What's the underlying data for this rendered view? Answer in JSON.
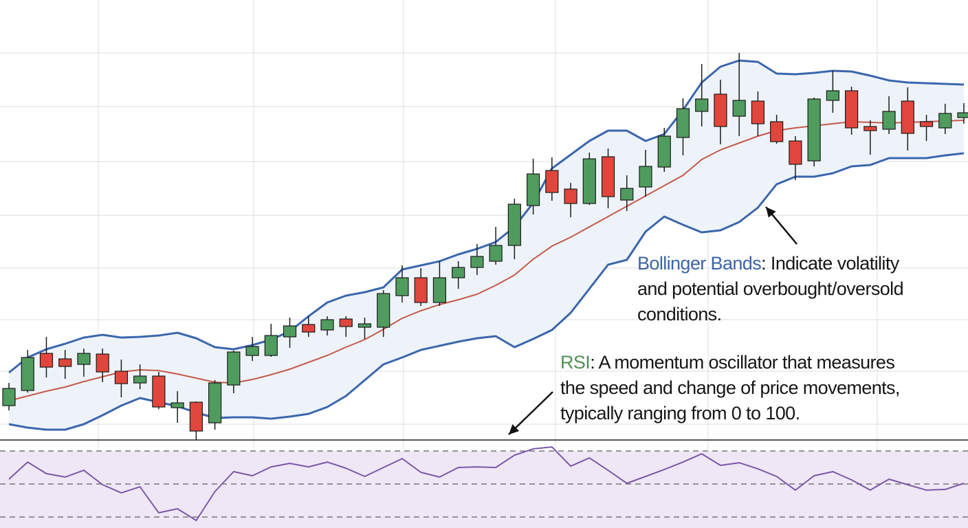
{
  "chart_data": [
    {
      "type": "candlestick",
      "title": "",
      "xlabel": "",
      "ylabel": "",
      "ylim": [
        12,
        140
      ],
      "grid": true,
      "colors": {
        "up": "#4f9c5e",
        "down": "#e0463c",
        "band": "#3b66ad",
        "middle": "#c65a48",
        "band_fill": "#edf3f9",
        "grid": "#e2e2e2"
      },
      "candles": [
        [
          22,
          28.6,
          20.6,
          27
        ],
        [
          26.4,
          38.2,
          25.8,
          36
        ],
        [
          37.2,
          42,
          30.2,
          33.2
        ],
        [
          35.6,
          38.2,
          29.8,
          33.4
        ],
        [
          34,
          38.6,
          30.4,
          37.2
        ],
        [
          37,
          38.6,
          28.8,
          31.8
        ],
        [
          32,
          35.4,
          24.4,
          28.4
        ],
        [
          28.6,
          34,
          26.8,
          30.6
        ],
        [
          30.6,
          31.8,
          21,
          21.6
        ],
        [
          21.4,
          26.2,
          17,
          22.8
        ],
        [
          23,
          23.2,
          12,
          14.6
        ],
        [
          17,
          29.4,
          15,
          28.6
        ],
        [
          28,
          38,
          25.6,
          37.6
        ],
        [
          36.6,
          42,
          35,
          39.2
        ],
        [
          36.6,
          45.8,
          36.2,
          42.4
        ],
        [
          42,
          47.6,
          38.8,
          45.2
        ],
        [
          45.6,
          48,
          42,
          43.4
        ],
        [
          44,
          48,
          42.4,
          47
        ],
        [
          47.2,
          48,
          42,
          45
        ],
        [
          44.8,
          47.6,
          41.4,
          45.8
        ],
        [
          44.8,
          55.6,
          42,
          54.6
        ],
        [
          54,
          62.8,
          52,
          59.2
        ],
        [
          59.2,
          62,
          51,
          52
        ],
        [
          52,
          64,
          51,
          59.2
        ],
        [
          59.2,
          64,
          56,
          62.2
        ],
        [
          62.2,
          69,
          60,
          65.4
        ],
        [
          64,
          74,
          63,
          68.6
        ],
        [
          68.6,
          82.2,
          64.6,
          80.6
        ],
        [
          80.2,
          93.8,
          77.6,
          89.4
        ],
        [
          90.4,
          94.2,
          81.6,
          84
        ],
        [
          85,
          86.8,
          76.8,
          80.8
        ],
        [
          80.8,
          95.6,
          80.4,
          93.8
        ],
        [
          94.4,
          96.8,
          79.4,
          82.8
        ],
        [
          81.8,
          89,
          78.6,
          85.2
        ],
        [
          85.6,
          96.4,
          82.8,
          91.6
        ],
        [
          91.4,
          102.8,
          90,
          100.4
        ],
        [
          100,
          111.4,
          94.8,
          108.4
        ],
        [
          107.6,
          121.4,
          103.2,
          111.2
        ],
        [
          112.6,
          116.8,
          98,
          103.2
        ],
        [
          106.2,
          124.6,
          100.4,
          110.8
        ],
        [
          110.6,
          113.4,
          100.4,
          104
        ],
        [
          104.6,
          106.6,
          98.2,
          98.8
        ],
        [
          99,
          100.4,
          87.6,
          92.2
        ],
        [
          93.2,
          111.6,
          91.6,
          111.2
        ],
        [
          110.8,
          119.4,
          107.2,
          113.6
        ],
        [
          113.6,
          114.8,
          100.8,
          102.8
        ],
        [
          103.2,
          105,
          95,
          102
        ],
        [
          102.4,
          112,
          101,
          107.6
        ],
        [
          110.6,
          114.6,
          96.2,
          101.2
        ],
        [
          104.6,
          106.6,
          99,
          103.2
        ],
        [
          102.8,
          109.8,
          101,
          107
        ],
        [
          105.8,
          110,
          104,
          107.2
        ]
      ],
      "candle_fields": [
        "open",
        "high",
        "low",
        "close"
      ],
      "bollinger_upper": [
        31.6,
        36,
        38.4,
        40,
        41.8,
        42.6,
        41.8,
        42,
        42.4,
        43.2,
        41.6,
        39,
        38.4,
        39.6,
        41.2,
        43.6,
        48,
        52,
        54,
        55,
        56.4,
        61.6,
        62.8,
        64,
        66,
        67.6,
        69.6,
        74,
        81,
        91,
        95,
        99,
        102,
        102,
        99,
        101,
        108,
        116,
        120.6,
        122.4,
        122,
        118.6,
        118.4,
        118.8,
        119.4,
        119.2,
        118,
        116.6,
        116,
        115.8,
        115.6,
        115.4
      ],
      "bollinger_middle": [
        23.4,
        24.8,
        26.2,
        27.4,
        29,
        30.4,
        31.8,
        32.4,
        32.2,
        31.2,
        30,
        28.8,
        28.6,
        29.6,
        31,
        32.6,
        34.6,
        36.6,
        39,
        41.2,
        44.2,
        47.4,
        49.6,
        51.4,
        52.8,
        54.4,
        57,
        60,
        64.6,
        68.4,
        71,
        74,
        77,
        80,
        83,
        86,
        89,
        93.6,
        96.4,
        98.4,
        100.4,
        102,
        102.8,
        103.4,
        104,
        104.6,
        104.4,
        104.2,
        104.4,
        104.6,
        104.8,
        105
      ],
      "bollinger_lower": [
        16.6,
        15.6,
        15,
        15,
        16.6,
        19.2,
        22,
        24.2,
        23,
        21.8,
        20,
        18.4,
        18.6,
        18.6,
        18.2,
        18.8,
        19.6,
        21.6,
        24.8,
        29.4,
        34,
        36,
        38.2,
        39.4,
        40.6,
        41.6,
        42.2,
        39,
        41.4,
        44,
        49,
        56,
        63,
        64.4,
        72.6,
        77,
        74.6,
        72.4,
        73,
        75.4,
        79.6,
        86.4,
        88.6,
        88.6,
        89.6,
        91.6,
        92,
        94,
        94,
        94,
        94.8,
        95.4
      ]
    },
    {
      "type": "line",
      "title": "",
      "ylim": [
        23.3,
        76.7
      ],
      "reference_lines": [
        70,
        50,
        30
      ],
      "colors": {
        "line": "#7a58a8",
        "fill": "#efe7f5",
        "ref": "#777777"
      },
      "values": [
        52.9,
        63.3,
        56.3,
        54.2,
        58.3,
        49.6,
        44.6,
        48.3,
        32.5,
        35,
        27.9,
        45.4,
        57.5,
        55,
        60.4,
        62.5,
        60.4,
        63.3,
        59.6,
        54.6,
        60,
        65.4,
        57.1,
        54.2,
        60,
        60.4,
        60,
        67.5,
        71.3,
        72.5,
        60.8,
        65.8,
        58.3,
        50.4,
        54.6,
        58.8,
        63.3,
        68.3,
        61.3,
        62.9,
        59.2,
        54.6,
        46.3,
        55,
        57.5,
        52.5,
        46.3,
        52.9,
        49.6,
        46.3,
        46.7,
        50.4
      ]
    }
  ],
  "annotations": {
    "bollinger": {
      "term": "Bollinger Bands",
      "line1": ": Indicate volatility",
      "line2": "and potential overbought/oversold",
      "line3": "conditions.",
      "term_color": "#3d64a6"
    },
    "rsi": {
      "term": "RSI",
      "line1": ": A momentum oscillator that measures",
      "line2": "the speed and change of price movements,",
      "line3": "typically ranging from 0 to 100.",
      "term_color": "#4f8f55"
    }
  }
}
